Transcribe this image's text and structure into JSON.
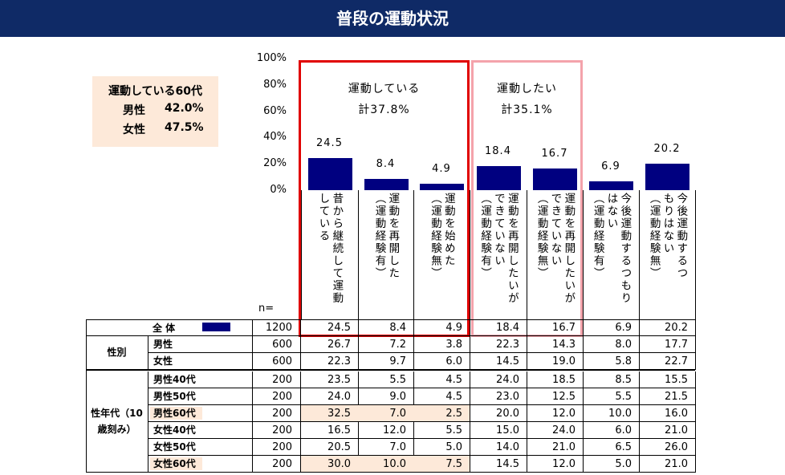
{
  "header": {
    "title": "普段の運動状況"
  },
  "summary_box": {
    "title": "運動している60代",
    "rows": [
      [
        "男性",
        "42.0%"
      ],
      [
        "女性",
        "47.5%"
      ]
    ]
  },
  "chart_data": {
    "type": "bar",
    "categories": [
      "昔から継続して運動\nしている",
      "運動を再開した\n（運動経験有）",
      "運動を始めた\n（運動経験無）",
      "運動を再開したいが\nできていない\n（運動経験有）",
      "運動を再開したいが\nできていない\n（運動経験無）",
      "今後運動するつもり\nはない\n（運動経験有）",
      "今後運動するつ\nもりはない\n（運動経験無）"
    ],
    "values": [
      24.5,
      8.4,
      4.9,
      18.4,
      16.7,
      6.9,
      20.2
    ],
    "color": "#000080",
    "ylim": [
      0,
      100
    ],
    "yticks": [
      {
        "value": 0,
        "label": "0%"
      },
      {
        "value": 20,
        "label": "20%"
      },
      {
        "value": 40,
        "label": "40%"
      },
      {
        "value": 60,
        "label": "60%"
      },
      {
        "value": 80,
        "label": "80%"
      },
      {
        "value": 100,
        "label": "100%"
      }
    ],
    "grid": false,
    "annotations": [
      {
        "text": "運動している\n計37.8%",
        "color": "#e00000"
      },
      {
        "text": "運動したい\n計35.1%",
        "color": "#f4a3ab"
      }
    ]
  },
  "table": {
    "n_label": "n=",
    "groups": [
      "",
      "性別",
      "性年代（10\n歳刻み）"
    ],
    "rows": [
      {
        "group": 0,
        "label": "全 体",
        "n": "1200",
        "values": [
          "24.5",
          "8.4",
          "4.9",
          "18.4",
          "16.7",
          "6.9",
          "20.2"
        ],
        "highlight": false
      },
      {
        "group": 1,
        "label": "男性",
        "n": "600",
        "values": [
          "26.7",
          "7.2",
          "3.8",
          "22.3",
          "14.3",
          "8.0",
          "17.7"
        ],
        "highlight": false
      },
      {
        "group": 1,
        "label": "女性",
        "n": "600",
        "values": [
          "22.3",
          "9.7",
          "6.0",
          "14.5",
          "19.0",
          "5.8",
          "22.7"
        ],
        "highlight": false
      },
      {
        "group": 2,
        "label": "男性40代",
        "n": "200",
        "values": [
          "23.5",
          "5.5",
          "4.5",
          "24.0",
          "18.5",
          "8.5",
          "15.5"
        ],
        "highlight": false
      },
      {
        "group": 2,
        "label": "男性50代",
        "n": "200",
        "values": [
          "24.0",
          "9.0",
          "4.5",
          "23.0",
          "12.5",
          "5.5",
          "21.5"
        ],
        "highlight": false
      },
      {
        "group": 2,
        "label": "男性60代",
        "n": "200",
        "values": [
          "32.5",
          "7.0",
          "2.5",
          "20.0",
          "12.0",
          "10.0",
          "16.0"
        ],
        "highlight": true
      },
      {
        "group": 2,
        "label": "女性40代",
        "n": "200",
        "values": [
          "16.5",
          "12.0",
          "5.5",
          "15.0",
          "24.0",
          "6.0",
          "21.0"
        ],
        "highlight": false
      },
      {
        "group": 2,
        "label": "女性50代",
        "n": "200",
        "values": [
          "20.5",
          "7.0",
          "5.0",
          "14.0",
          "21.0",
          "6.5",
          "26.0"
        ],
        "highlight": false
      },
      {
        "group": 2,
        "label": "女性60代",
        "n": "200",
        "values": [
          "30.0",
          "10.0",
          "7.5",
          "14.5",
          "12.0",
          "5.0",
          "21.0"
        ],
        "highlight": true
      }
    ]
  }
}
